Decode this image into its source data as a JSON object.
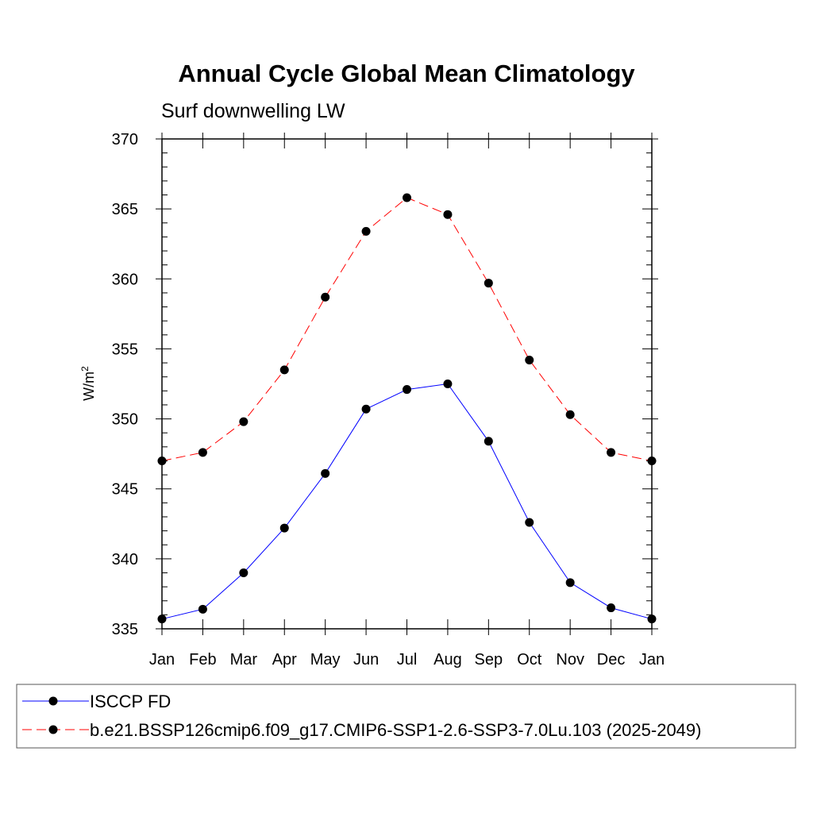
{
  "chart_data": {
    "type": "line",
    "title": "Annual Cycle Global Mean Climatology",
    "subtitle": "Surf downwelling LW",
    "ylabel": "W/m",
    "ylabel_sup": "2",
    "xlabel": "",
    "categories": [
      "Jan",
      "Feb",
      "Mar",
      "Apr",
      "May",
      "Jun",
      "Jul",
      "Aug",
      "Sep",
      "Oct",
      "Nov",
      "Dec",
      "Jan"
    ],
    "ylim": [
      335,
      370
    ],
    "y_ticks": [
      335,
      340,
      345,
      350,
      355,
      360,
      365,
      370
    ],
    "y_tick_labels": [
      "335",
      "340",
      "345",
      "350",
      "355",
      "360",
      "365",
      "370"
    ],
    "series": [
      {
        "name": "ISCCP FD",
        "color": "#0000ff",
        "dash": "solid",
        "values": [
          335.7,
          336.4,
          339.0,
          342.2,
          346.1,
          350.7,
          352.1,
          352.5,
          348.4,
          342.6,
          338.3,
          336.5,
          335.7
        ]
      },
      {
        "name": "b.e21.BSSP126cmip6.f09_g17.CMIP6-SSP1-2.6-SSP3-7.0Lu.103 (2025-2049)",
        "color": "#ff0000",
        "dash": "dashed",
        "values": [
          347.0,
          347.6,
          349.8,
          353.5,
          358.7,
          363.4,
          365.8,
          364.6,
          359.7,
          354.2,
          350.3,
          347.6,
          347.0
        ]
      }
    ],
    "marker": "filled-circle",
    "grid": false,
    "legend_position": "bottom"
  }
}
